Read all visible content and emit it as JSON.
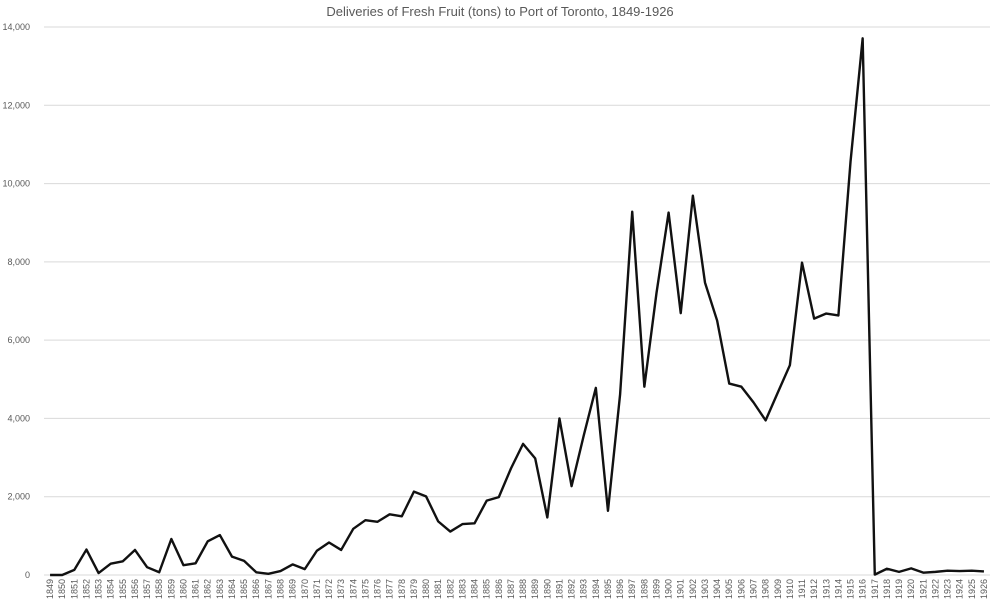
{
  "chart_data": {
    "type": "line",
    "title": "Deliveries of Fresh Fruit (tons) to Port of Toronto, 1849-1926",
    "xlabel": "",
    "ylabel": "",
    "ylim": [
      0,
      14000
    ],
    "yticks": [
      0,
      2000,
      4000,
      6000,
      8000,
      10000,
      12000,
      14000
    ],
    "ytick_labels": [
      "0",
      "2,000",
      "4,000",
      "6,000",
      "8,000",
      "10,000",
      "12,000",
      "14,000"
    ],
    "grid": true,
    "line_color": "#111111",
    "categories": [
      "1849",
      "1850",
      "1851",
      "1852",
      "1853",
      "1854",
      "1855",
      "1856",
      "1857",
      "1858",
      "1859",
      "1860",
      "1861",
      "1862",
      "1863",
      "1864",
      "1865",
      "1866",
      "1867",
      "1868",
      "1869",
      "1870",
      "1871",
      "1872",
      "1873",
      "1874",
      "1875",
      "1876",
      "1877",
      "1878",
      "1879",
      "1880",
      "1881",
      "1882",
      "1883",
      "1884",
      "1885",
      "1886",
      "1887",
      "1888",
      "1889",
      "1890",
      "1891",
      "1892",
      "1893",
      "1894",
      "1895",
      "1896",
      "1897",
      "1898",
      "1899",
      "1900",
      "1901",
      "1902",
      "1903",
      "1904",
      "1905",
      "1906",
      "1907",
      "1908",
      "1909",
      "1910",
      "1911",
      "1912",
      "1913",
      "1914",
      "1915",
      "1916",
      "1917",
      "1918",
      "1919",
      "1920",
      "1921",
      "1922",
      "1923",
      "1924",
      "1925",
      "1926"
    ],
    "values": [
      0,
      0,
      130,
      650,
      50,
      290,
      350,
      640,
      200,
      70,
      920,
      250,
      300,
      860,
      1020,
      470,
      360,
      70,
      30,
      100,
      270,
      150,
      620,
      830,
      640,
      1180,
      1400,
      1360,
      1550,
      1500,
      2130,
      2010,
      1370,
      1110,
      1300,
      1320,
      1900,
      1990,
      2720,
      3350,
      2980,
      1470,
      4000,
      2270,
      3560,
      4780,
      1640,
      4610,
      9280,
      4810,
      7200,
      9260,
      6690,
      9690,
      7470,
      6500,
      4890,
      4810,
      4410,
      3950,
      4660,
      5360,
      7980,
      6550,
      6680,
      6630,
      10560,
      13710,
      10,
      160,
      80,
      170,
      60,
      80,
      110,
      100,
      110,
      90
    ]
  }
}
